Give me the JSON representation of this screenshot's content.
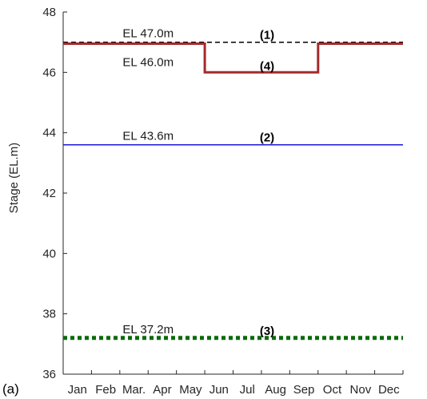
{
  "panel_label": "(a)",
  "chart_data": {
    "type": "line",
    "title": "",
    "xlabel": "",
    "ylabel": "Stage (EL.m)",
    "categories": [
      "Jan",
      "Feb",
      "Mar.",
      "Apr",
      "May",
      "Jun",
      "Jul",
      "Aug",
      "Sep",
      "Oct",
      "Nov",
      "Dec"
    ],
    "xlim": [
      0,
      12
    ],
    "ylim": [
      36,
      48
    ],
    "yticks": [
      "36",
      "38",
      "40",
      "42",
      "44",
      "46",
      "48"
    ],
    "grid": false,
    "series": [
      {
        "id": "line1",
        "tag": "(1)",
        "label": "EL 47.0m",
        "color": "#000000",
        "style": "dashed",
        "x": [
          0,
          12
        ],
        "y": [
          47.0,
          47.0
        ]
      },
      {
        "id": "line4",
        "tag": "(4)",
        "label": "EL 46.0m",
        "color": "#a52a2a",
        "style": "solid-thick",
        "x": [
          0,
          5,
          5,
          9,
          9,
          12
        ],
        "y": [
          46.95,
          46.95,
          46.0,
          46.0,
          46.95,
          46.95
        ]
      },
      {
        "id": "line2",
        "tag": "(2)",
        "label": "EL 43.6m",
        "color": "#1a1ad6",
        "style": "solid",
        "x": [
          0,
          12
        ],
        "y": [
          43.6,
          43.6
        ]
      },
      {
        "id": "line3",
        "tag": "(3)",
        "label": "EL 37.2m",
        "color": "#0a6b0a",
        "style": "dotted-thick",
        "x": [
          0,
          12
        ],
        "y": [
          37.2,
          37.2
        ]
      }
    ]
  }
}
